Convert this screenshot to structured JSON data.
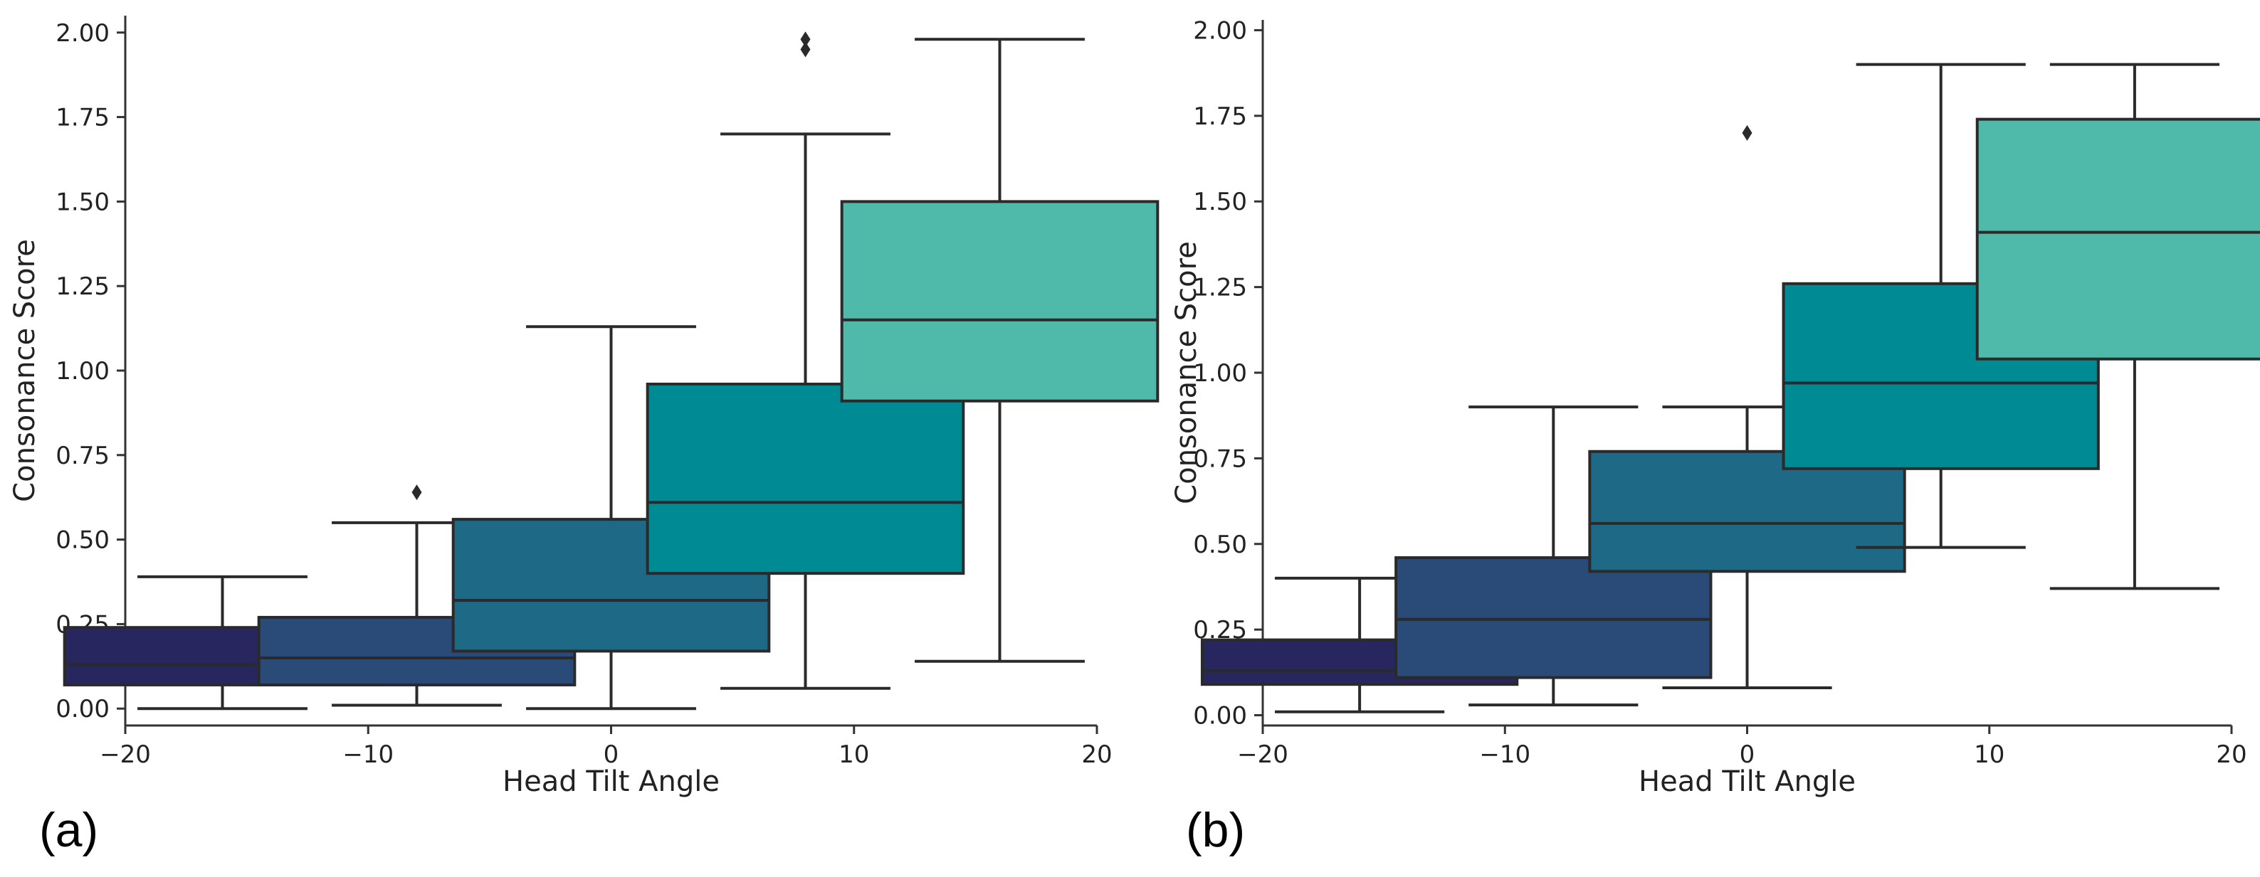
{
  "chart_data": [
    {
      "panel_label": "(a)",
      "type": "box",
      "xlabel": "Head Tilt Angle",
      "ylabel": "Consonance Score",
      "xlim": [
        -20,
        20
      ],
      "ylim": [
        -0.05,
        2.05
      ],
      "xticks": [
        -20,
        -10,
        0,
        10,
        20
      ],
      "xtick_labels": [
        "−20",
        "−10",
        "0",
        "10",
        "20"
      ],
      "yticks": [
        0,
        0.25,
        0.5,
        0.75,
        1.0,
        1.25,
        1.5,
        1.75,
        2.0
      ],
      "ytick_labels": [
        "0.00",
        "0.25",
        "0.50",
        "0.75",
        "1.00",
        "1.25",
        "1.50",
        "1.75",
        "2.00"
      ],
      "boxes": [
        {
          "position": -16,
          "whisker_low": 0.0,
          "q1": 0.07,
          "median": 0.13,
          "q3": 0.24,
          "whisker_high": 0.39,
          "fliers": [],
          "color": "#27265e"
        },
        {
          "position": -8,
          "whisker_low": 0.01,
          "q1": 0.07,
          "median": 0.15,
          "q3": 0.27,
          "whisker_high": 0.55,
          "fliers": [
            0.64
          ],
          "color": "#2a4a78"
        },
        {
          "position": 0,
          "whisker_low": 0.0,
          "q1": 0.17,
          "median": 0.32,
          "q3": 0.56,
          "whisker_high": 1.13,
          "fliers": [],
          "color": "#1e6a86"
        },
        {
          "position": 8,
          "whisker_low": 0.06,
          "q1": 0.4,
          "median": 0.61,
          "q3": 0.96,
          "whisker_high": 1.7,
          "fliers": [
            1.95,
            1.98
          ],
          "color": "#008b94"
        },
        {
          "position": 16,
          "whisker_low": 0.14,
          "q1": 0.91,
          "median": 1.15,
          "q3": 1.5,
          "whisker_high": 1.98,
          "fliers": [],
          "color": "#4fb9aa"
        }
      ]
    },
    {
      "panel_label": "(b)",
      "type": "box",
      "xlabel": "Head Tilt Angle",
      "ylabel": "Consonance Score",
      "xlim": [
        -20,
        20
      ],
      "ylim": [
        -0.03,
        2.03
      ],
      "xticks": [
        -20,
        -10,
        0,
        10,
        20
      ],
      "xtick_labels": [
        "−20",
        "−10",
        "0",
        "10",
        "20"
      ],
      "yticks": [
        0,
        0.25,
        0.5,
        0.75,
        1.0,
        1.25,
        1.5,
        1.75,
        2.0
      ],
      "ytick_labels": [
        "0.00",
        "0.25",
        "0.50",
        "0.75",
        "1.00",
        "1.25",
        "1.50",
        "1.75",
        "2.00"
      ],
      "boxes": [
        {
          "position": -16,
          "whisker_low": 0.01,
          "q1": 0.09,
          "median": 0.13,
          "q3": 0.22,
          "whisker_high": 0.4,
          "fliers": [],
          "color": "#27265e"
        },
        {
          "position": -8,
          "whisker_low": 0.03,
          "q1": 0.11,
          "median": 0.28,
          "q3": 0.46,
          "whisker_high": 0.9,
          "fliers": [],
          "color": "#2a4a78"
        },
        {
          "position": 0,
          "whisker_low": 0.08,
          "q1": 0.42,
          "median": 0.56,
          "q3": 0.77,
          "whisker_high": 0.9,
          "fliers": [
            1.7
          ],
          "color": "#1e6a86"
        },
        {
          "position": 8,
          "whisker_low": 0.49,
          "q1": 0.72,
          "median": 0.97,
          "q3": 1.26,
          "whisker_high": 1.9,
          "fliers": [],
          "color": "#008b94"
        },
        {
          "position": 16,
          "whisker_low": 0.37,
          "q1": 1.04,
          "median": 1.41,
          "q3": 1.74,
          "whisker_high": 1.9,
          "fliers": [],
          "color": "#4fb9aa"
        }
      ]
    }
  ]
}
